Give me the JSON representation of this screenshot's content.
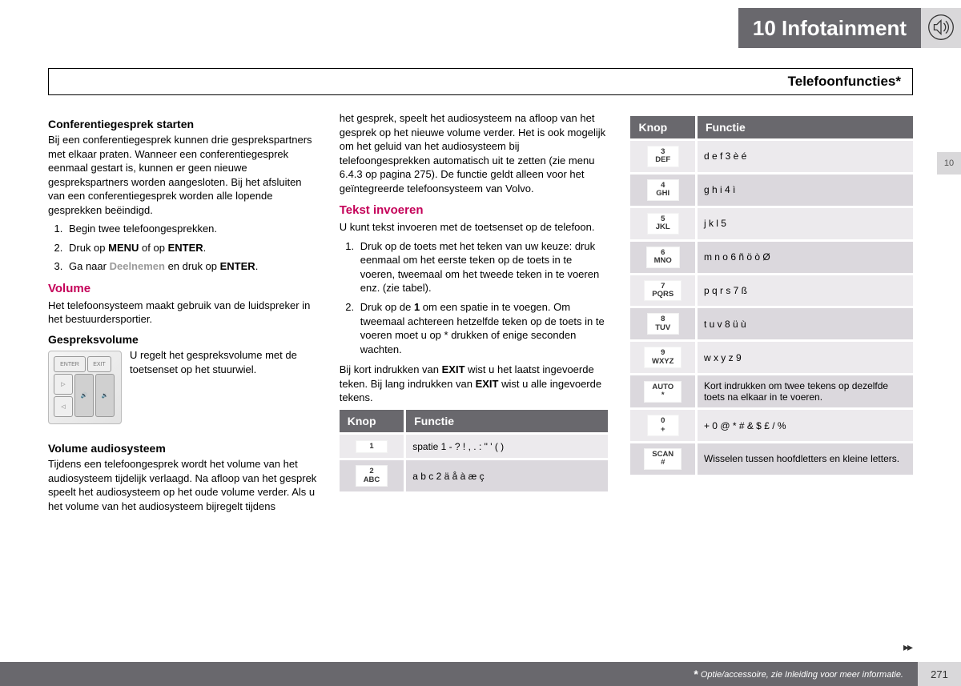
{
  "header": {
    "chapter_label": "10 Infotainment",
    "side_tab": "10"
  },
  "subtitle": "Telefoonfuncties*",
  "col1": {
    "h1": "Conferentiegesprek starten",
    "p1": "Bij een conferentiegesprek kunnen drie gesprekspartners met elkaar praten. Wanneer een conferentiegesprek eenmaal gestart is, kunnen er geen nieuwe gesprekspartners worden aangesloten. Bij het afsluiten van een conferentiegesprek worden alle lopende gesprekken beëindigd.",
    "ol1_1": "Begin twee telefoongesprekken.",
    "ol1_2a": "Druk op ",
    "ol1_2b": "MENU",
    "ol1_2c": " of op ",
    "ol1_2d": "ENTER",
    "ol1_2e": ".",
    "ol1_3a": "Ga naar ",
    "ol1_3b": "Deelnemen",
    "ol1_3c": " en druk op ",
    "ol1_3d": "ENTER",
    "ol1_3e": ".",
    "h2": "Volume",
    "p2": "Het telefoonsysteem maakt gebruik van de luidspreker in het bestuurdersportier.",
    "h3": "Gespreksvolume",
    "p3": "U regelt het gespreksvolume met de toetsenset op het stuurwiel.",
    "h4": "Volume audiosysteem",
    "p4": "Tijdens een telefoongesprek wordt het volume van het audiosysteem tijdelijk verlaagd. Na afloop van het gesprek speelt het audiosysteem op het oude volume verder. Als u het volume van het audiosysteem bijregelt tijdens"
  },
  "col2": {
    "p_cont": "het gesprek, speelt het audiosysteem na afloop van het gesprek op het nieuwe volume verder. Het is ook mogelijk om het geluid van het audiosysteem bij telefoongesprekken automatisch uit te zetten (zie menu 6.4.3 op pagina 275). De functie geldt alleen voor het geïntegreerde telefoonsysteem van Volvo.",
    "h1": "Tekst invoeren",
    "p1": "U kunt tekst invoeren met de toetsenset op de telefoon.",
    "ol1_1": "Druk op de toets met het teken van uw keuze: druk eenmaal om het eerste teken op de toets in te voeren, tweemaal om het tweede teken in te voeren enz. (zie tabel).",
    "ol1_2a": "Druk op de ",
    "ol1_2b": "1",
    "ol1_2c": " om een spatie in te voegen. Om tweemaal achtereen hetzelfde teken op de toets in te voeren moet u op * drukken of enige seconden wachten.",
    "p2a": "Bij kort indrukken van ",
    "p2b": "EXIT",
    "p2c": " wist u het laatst ingevoerde teken. Bij lang indrukken van ",
    "p2d": "EXIT",
    "p2e": " wist u alle ingevoerde tekens."
  },
  "table_headers": {
    "knop": "Knop",
    "functie": "Functie"
  },
  "table_left": [
    {
      "key": "1",
      "sub": "",
      "func": "spatie 1 - ? ! , . : \" ' ( )"
    },
    {
      "key": "2",
      "sub": "ABC",
      "func": "a b c 2 ä å à æ ç"
    }
  ],
  "table_right": [
    {
      "key": "3",
      "sub": "DEF",
      "func": "d e f 3 è é"
    },
    {
      "key": "4",
      "sub": "GHI",
      "func": "g h i 4 ì"
    },
    {
      "key": "5",
      "sub": "JKL",
      "func": "j k l 5"
    },
    {
      "key": "6",
      "sub": "MNO",
      "func": "m n o 6 ñ ö ò Ø"
    },
    {
      "key": "7",
      "sub": "PQRS",
      "func": "p q r s 7 ß"
    },
    {
      "key": "8",
      "sub": "TUV",
      "func": "t u v 8 ü ù"
    },
    {
      "key": "9",
      "sub": "WXYZ",
      "func": "w x y z 9"
    },
    {
      "key": "AUTO",
      "sub": "*",
      "func": "Kort indrukken om twee tekens op dezelfde toets na elkaar in te voeren."
    },
    {
      "key": "0",
      "sub": "+",
      "func": "+ 0 @ * # & $ £ / %"
    },
    {
      "key": "SCAN",
      "sub": "#",
      "func": "Wisselen tussen hoofdletters en kleine letters."
    }
  ],
  "footer": {
    "note": "Optie/accessoire, zie Inleiding voor meer informatie.",
    "page": "271",
    "star": "*"
  },
  "cont_arrows": "▸▸"
}
